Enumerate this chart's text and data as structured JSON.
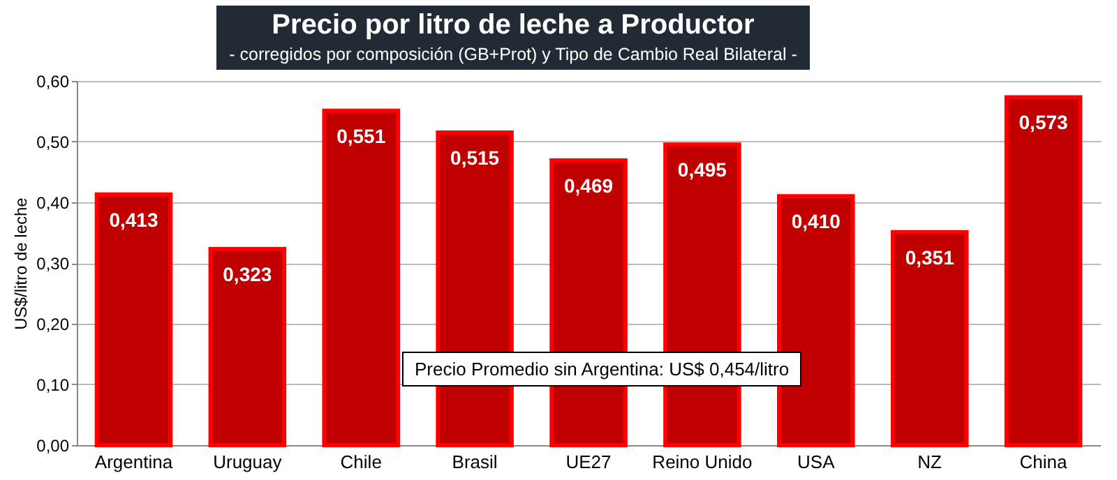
{
  "chart_data": {
    "type": "bar",
    "title": "Precio por litro de leche a Productor",
    "subtitle": "-  corregidos por composición (GB+Prot) y Tipo de Cambio Real Bilateral -",
    "ylabel": "US$/litro de leche",
    "categories": [
      "Argentina",
      "Uruguay",
      "Chile",
      "Brasil",
      "UE27",
      "Reino Unido",
      "USA",
      "NZ",
      "China"
    ],
    "values": [
      0.413,
      0.323,
      0.551,
      0.515,
      0.469,
      0.495,
      0.41,
      0.351,
      0.573
    ],
    "value_labels": [
      "0,413",
      "0,323",
      "0,551",
      "0,515",
      "0,469",
      "0,495",
      "0,410",
      "0,351",
      "0,573"
    ],
    "color": "#c00000",
    "ylim": [
      0,
      0.6
    ],
    "yticks": [
      {
        "value": 0,
        "label": "0,00"
      },
      {
        "value": 0.1,
        "label": "0,10"
      },
      {
        "value": 0.2,
        "label": "0,20"
      },
      {
        "value": 0.3,
        "label": "0,30"
      },
      {
        "value": 0.4,
        "label": "0,40"
      },
      {
        "value": 0.5,
        "label": "0,50"
      },
      {
        "value": 0.6,
        "label": "0,60"
      }
    ],
    "grid": "y",
    "annotations": [
      "Precio Promedio sin Argentina: US$ 0,454/litro"
    ]
  }
}
